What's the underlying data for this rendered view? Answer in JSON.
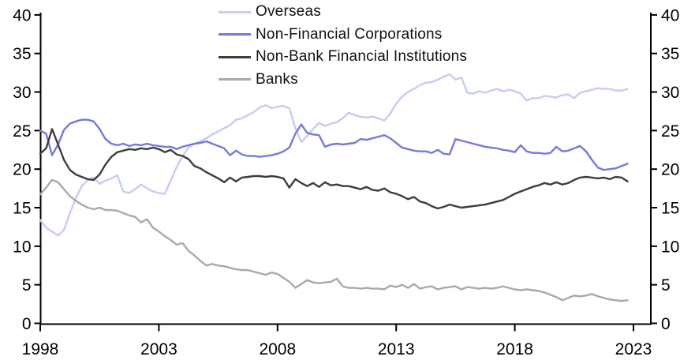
{
  "figure": {
    "kind": "line-chart",
    "background": "#ffffff",
    "axis_color": "#000000",
    "tick_label_color": "#000000"
  },
  "chart_data": {
    "type": "line",
    "title": "",
    "xlabel": "",
    "ylabel": "",
    "x_start": 1998.0,
    "x_step": 0.25,
    "x_end": 2022.75,
    "xlim": [
      1998,
      2023.6
    ],
    "ylim": [
      0,
      40
    ],
    "x_ticks": [
      1998,
      2003,
      2008,
      2013,
      2018,
      2023
    ],
    "y_ticks": [
      0,
      5,
      10,
      15,
      20,
      25,
      30,
      35,
      40
    ],
    "y_axis_sides": [
      "left",
      "right"
    ],
    "grid": false,
    "legend_position": "top-inside",
    "series": [
      {
        "name": "Overseas",
        "color": "#c6ccf2",
        "values": [
          13.4,
          12.4,
          11.9,
          11.4,
          12.1,
          14.3,
          16.2,
          17.8,
          18.6,
          18.9,
          18.1,
          18.5,
          18.8,
          19.2,
          17.1,
          16.9,
          17.4,
          18.0,
          17.5,
          17.1,
          16.9,
          16.8,
          18.5,
          20.3,
          21.7,
          22.8,
          23.3,
          23.6,
          24.0,
          24.5,
          24.9,
          25.3,
          25.7,
          26.4,
          26.6,
          27.0,
          27.4,
          28.0,
          28.3,
          27.9,
          28.1,
          28.2,
          27.9,
          25.3,
          23.5,
          24.3,
          25.2,
          26.0,
          25.6,
          25.9,
          26.1,
          26.6,
          27.3,
          27.0,
          26.8,
          26.7,
          26.8,
          26.6,
          26.3,
          27.2,
          28.5,
          29.4,
          30.0,
          30.4,
          30.9,
          31.2,
          31.3,
          31.6,
          32.0,
          32.3,
          31.6,
          31.9,
          29.9,
          29.8,
          30.1,
          29.9,
          30.2,
          30.4,
          30.1,
          30.3,
          30.1,
          29.8,
          28.9,
          29.2,
          29.2,
          29.5,
          29.4,
          29.3,
          29.6,
          29.7,
          29.2,
          29.9,
          30.1,
          30.3,
          30.5,
          30.4,
          30.4,
          30.2,
          30.2,
          30.4
        ]
      },
      {
        "name": "Non-Financial Corporations",
        "color": "#7578de",
        "values": [
          25.0,
          24.6,
          21.8,
          23.2,
          25.1,
          25.9,
          26.2,
          26.4,
          26.4,
          26.2,
          25.2,
          23.9,
          23.3,
          23.1,
          23.3,
          23.0,
          23.2,
          23.1,
          23.3,
          23.1,
          23.0,
          22.9,
          22.9,
          22.6,
          22.9,
          23.1,
          23.3,
          23.4,
          23.6,
          23.3,
          23.0,
          22.7,
          21.8,
          22.4,
          21.9,
          21.7,
          21.7,
          21.6,
          21.7,
          21.8,
          22.0,
          22.3,
          22.8,
          24.6,
          25.8,
          24.7,
          24.5,
          24.4,
          22.9,
          23.2,
          23.3,
          23.2,
          23.3,
          23.4,
          23.9,
          23.8,
          24.0,
          24.2,
          24.4,
          24.0,
          23.4,
          22.8,
          22.6,
          22.4,
          22.3,
          22.3,
          22.1,
          22.5,
          22.0,
          21.9,
          23.9,
          23.7,
          23.5,
          23.3,
          23.1,
          22.9,
          22.8,
          22.7,
          22.5,
          22.4,
          22.2,
          23.1,
          22.3,
          22.1,
          22.1,
          22.0,
          22.1,
          22.9,
          22.3,
          22.4,
          22.7,
          23.0,
          22.3,
          21.2,
          20.2,
          19.9,
          20.0,
          20.1,
          20.4,
          20.7
        ]
      },
      {
        "name": "Non-Bank Financial Institutions",
        "color": "#3d3d3d",
        "values": [
          22.0,
          22.7,
          25.2,
          23.2,
          21.2,
          19.9,
          19.3,
          19.0,
          18.7,
          18.6,
          19.3,
          20.6,
          21.6,
          22.2,
          22.4,
          22.6,
          22.5,
          22.7,
          22.6,
          22.8,
          22.6,
          22.2,
          22.5,
          21.9,
          21.7,
          21.3,
          20.4,
          20.1,
          19.6,
          19.2,
          18.8,
          18.3,
          18.9,
          18.4,
          18.9,
          19.0,
          19.1,
          19.1,
          19.0,
          19.1,
          19.0,
          18.8,
          17.6,
          18.7,
          18.2,
          17.8,
          18.2,
          17.7,
          18.3,
          17.9,
          18.0,
          17.8,
          17.8,
          17.6,
          17.4,
          17.7,
          17.3,
          17.2,
          17.5,
          17.0,
          16.8,
          16.5,
          16.1,
          16.4,
          15.8,
          15.6,
          15.2,
          14.9,
          15.1,
          15.4,
          15.2,
          15.0,
          15.1,
          15.2,
          15.3,
          15.4,
          15.6,
          15.8,
          16.0,
          16.4,
          16.8,
          17.1,
          17.4,
          17.7,
          17.9,
          18.2,
          18.0,
          18.3,
          18.0,
          18.2,
          18.6,
          18.9,
          19.0,
          18.9,
          18.8,
          18.9,
          18.7,
          19.0,
          18.9,
          18.4
        ]
      },
      {
        "name": "Banks",
        "color": "#a9a9a9",
        "values": [
          16.7,
          17.6,
          18.6,
          18.3,
          17.4,
          16.5,
          15.9,
          15.4,
          15.0,
          14.8,
          15.0,
          14.7,
          14.7,
          14.6,
          14.3,
          14.0,
          13.8,
          13.1,
          13.5,
          12.4,
          11.9,
          11.3,
          10.8,
          10.2,
          10.4,
          9.4,
          8.8,
          8.1,
          7.5,
          7.7,
          7.5,
          7.4,
          7.2,
          7.0,
          6.9,
          6.9,
          6.7,
          6.5,
          6.3,
          6.6,
          6.4,
          5.9,
          5.4,
          4.6,
          5.1,
          5.6,
          5.3,
          5.2,
          5.3,
          5.4,
          5.8,
          4.8,
          4.6,
          4.6,
          4.5,
          4.6,
          4.5,
          4.5,
          4.4,
          4.9,
          4.7,
          5.0,
          4.6,
          5.1,
          4.5,
          4.7,
          4.8,
          4.4,
          4.6,
          4.7,
          4.8,
          4.4,
          4.7,
          4.6,
          4.5,
          4.6,
          4.5,
          4.6,
          4.8,
          4.6,
          4.4,
          4.3,
          4.4,
          4.3,
          4.2,
          4.0,
          3.7,
          3.4,
          3.0,
          3.3,
          3.6,
          3.5,
          3.6,
          3.8,
          3.5,
          3.3,
          3.1,
          3.0,
          2.9,
          3.0
        ]
      }
    ]
  }
}
